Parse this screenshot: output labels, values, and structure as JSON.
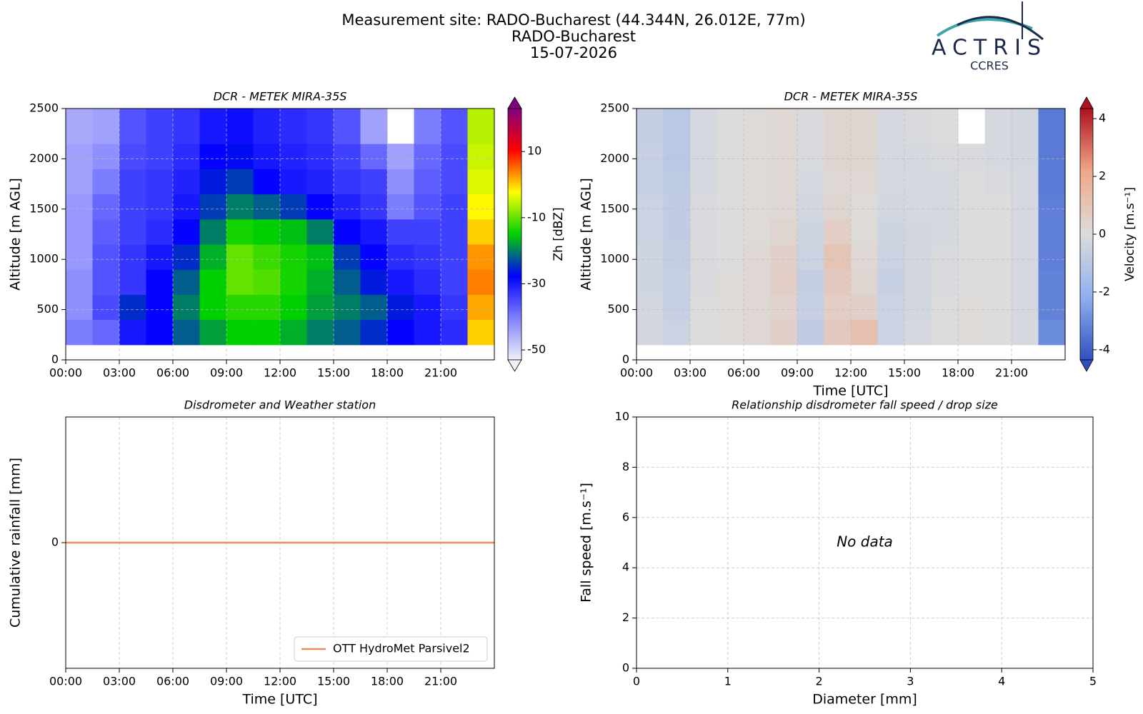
{
  "header": {
    "title_lines": [
      "Measurement site: RADO-Bucharest (44.344N, 26.012E, 77m)",
      "RADO-Bucharest",
      "15-07-2026"
    ],
    "logo_text": "ACTRIS",
    "logo_subtext": "CCRES"
  },
  "chart_data": [
    {
      "type": "heatmap",
      "title": "DCR - METEK MIRA-35S",
      "ylabel": "Altitude [m AGL]",
      "xlim": [
        0,
        24
      ],
      "xticks": [
        {
          "value": 0,
          "label": "00:00"
        },
        {
          "value": 3,
          "label": "03:00"
        },
        {
          "value": 6,
          "label": "06:00"
        },
        {
          "value": 9,
          "label": "09:00"
        },
        {
          "value": 12,
          "label": "12:00"
        },
        {
          "value": 15,
          "label": "15:00"
        },
        {
          "value": 18,
          "label": "18:00"
        },
        {
          "value": 21,
          "label": "21:00"
        }
      ],
      "ylim": [
        0,
        2500
      ],
      "yticks": [
        0,
        500,
        1000,
        1500,
        2000,
        2500
      ],
      "grid": true,
      "xbins": [
        0,
        1.5,
        3,
        4.5,
        6,
        7.5,
        9,
        10.5,
        12,
        13.5,
        15,
        16.5,
        18,
        19.5,
        21,
        22.5,
        24
      ],
      "ybins": [
        150,
        400,
        650,
        900,
        1150,
        1400,
        1650,
        1900,
        2150,
        2500
      ],
      "z": [
        [
          -40,
          -38,
          -30,
          -28,
          -22,
          -18,
          -15,
          -15,
          -17,
          -20,
          -22,
          -25,
          -28,
          -30,
          -32,
          0
        ],
        [
          -42,
          -35,
          -25,
          -28,
          -20,
          -15,
          -13,
          -13,
          -15,
          -18,
          -20,
          -22,
          -26,
          -30,
          -33,
          2
        ],
        [
          -42,
          -36,
          -33,
          -28,
          -22,
          -15,
          -10,
          -11,
          -14,
          -17,
          -22,
          -26,
          -30,
          -32,
          -34,
          4
        ],
        [
          -43,
          -36,
          -33,
          -30,
          -25,
          -17,
          -10,
          -12,
          -14,
          -16,
          -24,
          -28,
          -32,
          -33,
          -34,
          3
        ],
        [
          -43,
          -37,
          -34,
          -32,
          -28,
          -20,
          -14,
          -15,
          -16,
          -20,
          -28,
          -30,
          -34,
          -34,
          -34,
          0
        ],
        [
          -43,
          -38,
          -34,
          -33,
          -30,
          -24,
          -20,
          -22,
          -24,
          -28,
          -31,
          -33,
          -40,
          -36,
          -34,
          -2
        ],
        [
          -44,
          -40,
          -34,
          -33,
          -31,
          -26,
          -24,
          -28,
          -30,
          -31,
          -33,
          -34,
          -42,
          -37,
          -35,
          -4
        ],
        [
          -44,
          -42,
          -35,
          -34,
          -32,
          -28,
          -27,
          -30,
          -31,
          -32,
          -34,
          -38,
          -44,
          -38,
          -35,
          -5
        ],
        [
          -45,
          -44,
          -36,
          -34,
          -33,
          -30,
          -29,
          -31,
          -32,
          -33,
          -36,
          -44,
          null,
          -40,
          -36,
          -6
        ]
      ],
      "zlim": [
        -53,
        23
      ],
      "zticks": [
        -50,
        -30,
        -10,
        10
      ],
      "zlabel": "Zh [dBZ]",
      "colormap": [
        "#f0f0f8",
        "#8080ff",
        "#0000ff",
        "#00d000",
        "#ffff00",
        "#ff0000",
        "#800080"
      ]
    },
    {
      "type": "heatmap",
      "title": "DCR - METEK MIRA-35S",
      "ylabel": "Altitude [m AGL]",
      "xlabel": "Time [UTC]",
      "xlim": [
        0,
        24
      ],
      "xticks": [
        {
          "value": 0,
          "label": "00:00"
        },
        {
          "value": 3,
          "label": "03:00"
        },
        {
          "value": 6,
          "label": "06:00"
        },
        {
          "value": 9,
          "label": "09:00"
        },
        {
          "value": 12,
          "label": "12:00"
        },
        {
          "value": 15,
          "label": "15:00"
        },
        {
          "value": 18,
          "label": "18:00"
        },
        {
          "value": 21,
          "label": "21:00"
        }
      ],
      "ylim": [
        0,
        2500
      ],
      "yticks": [
        0,
        500,
        1000,
        1500,
        2000,
        2500
      ],
      "grid": true,
      "xbins": [
        0,
        1.5,
        3,
        4.5,
        6,
        7.5,
        9,
        10.5,
        12,
        13.5,
        15,
        16.5,
        18,
        19.5,
        21,
        22.5,
        24
      ],
      "ybins": [
        150,
        400,
        650,
        900,
        1150,
        1400,
        1650,
        1900,
        2150,
        2500
      ],
      "z": [
        [
          -0.3,
          -0.5,
          0,
          0.1,
          0.2,
          0.5,
          -0.8,
          0.8,
          1.2,
          -0.5,
          -0.2,
          0,
          0.1,
          0,
          -0.2,
          -3
        ],
        [
          -0.3,
          -0.6,
          0,
          0.1,
          0.2,
          0.4,
          -0.6,
          0.6,
          0.5,
          -0.5,
          -0.3,
          0,
          0.1,
          0,
          -0.2,
          -3.2
        ],
        [
          -0.4,
          -0.6,
          -0.1,
          0.1,
          0.2,
          0.6,
          -0.7,
          0.8,
          0.3,
          -0.6,
          -0.3,
          -0.1,
          0,
          0,
          -0.2,
          -3.2
        ],
        [
          -0.4,
          -0.7,
          -0.1,
          0,
          0.2,
          0.5,
          -0.5,
          1.0,
          0.2,
          -0.5,
          -0.3,
          -0.1,
          0,
          0,
          -0.2,
          -3.3
        ],
        [
          -0.5,
          -0.8,
          -0.1,
          0,
          0.1,
          0.3,
          -0.4,
          0.6,
          0.1,
          -0.4,
          -0.3,
          -0.2,
          0,
          0,
          -0.2,
          -3.3
        ],
        [
          -0.5,
          -0.8,
          -0.1,
          0,
          0.1,
          0.2,
          -0.3,
          0.3,
          0.1,
          -0.3,
          -0.2,
          -0.2,
          0,
          0,
          -0.2,
          -3.3
        ],
        [
          -0.6,
          -0.9,
          -0.2,
          0,
          0.1,
          0.2,
          -0.2,
          0.2,
          0.2,
          -0.2,
          -0.2,
          -0.2,
          0,
          -0.1,
          -0.2,
          -3.4
        ],
        [
          -0.6,
          -1.0,
          -0.2,
          0,
          0.1,
          0.2,
          -0.1,
          0.3,
          0.3,
          -0.2,
          -0.2,
          -0.1,
          -0.1,
          -0.2,
          -0.3,
          -3.4
        ],
        [
          -0.7,
          -1.0,
          -0.2,
          0,
          0.1,
          0.2,
          -0.1,
          0.3,
          0.3,
          -0.2,
          -0.1,
          0,
          null,
          -0.2,
          -0.3,
          -3.4
        ]
      ],
      "zlim": [
        -4.35,
        4.35
      ],
      "zticks": [
        -4,
        -2,
        0,
        2,
        4
      ],
      "zlabel": "Velocity [m.s⁻¹]",
      "colormap": [
        "#3050c0",
        "#90b0f0",
        "#dcdcdc",
        "#f0a888",
        "#b01020"
      ]
    },
    {
      "type": "line",
      "title": "Disdrometer and Weather station",
      "ylabel": "Cumulative rainfall [mm]",
      "xlabel": "Time [UTC]",
      "xlim": [
        0,
        24
      ],
      "xticks": [
        {
          "value": 0,
          "label": "00:00"
        },
        {
          "value": 3,
          "label": "03:00"
        },
        {
          "value": 6,
          "label": "06:00"
        },
        {
          "value": 9,
          "label": "09:00"
        },
        {
          "value": 12,
          "label": "12:00"
        },
        {
          "value": 15,
          "label": "15:00"
        },
        {
          "value": 18,
          "label": "18:00"
        },
        {
          "value": 21,
          "label": "21:00"
        }
      ],
      "ylim": [
        -1,
        1
      ],
      "yticks": [
        0
      ],
      "grid": "x",
      "legend": "lower right",
      "series": [
        {
          "name": "OTT HydroMet Parsivel2",
          "color": "#ee8a5f",
          "x": [
            0,
            24
          ],
          "values": [
            0,
            0
          ]
        }
      ]
    },
    {
      "type": "scatter",
      "title": "Relationship disdrometer fall speed / drop size",
      "ylabel": "Fall speed [m.s⁻¹]",
      "xlabel": "Diameter [mm]",
      "xlim": [
        0,
        5
      ],
      "xticks": [
        0,
        1,
        2,
        3,
        4,
        5
      ],
      "ylim": [
        0,
        10
      ],
      "yticks": [
        0,
        2,
        4,
        6,
        8,
        10
      ],
      "grid": true,
      "annotation": "No data"
    }
  ]
}
